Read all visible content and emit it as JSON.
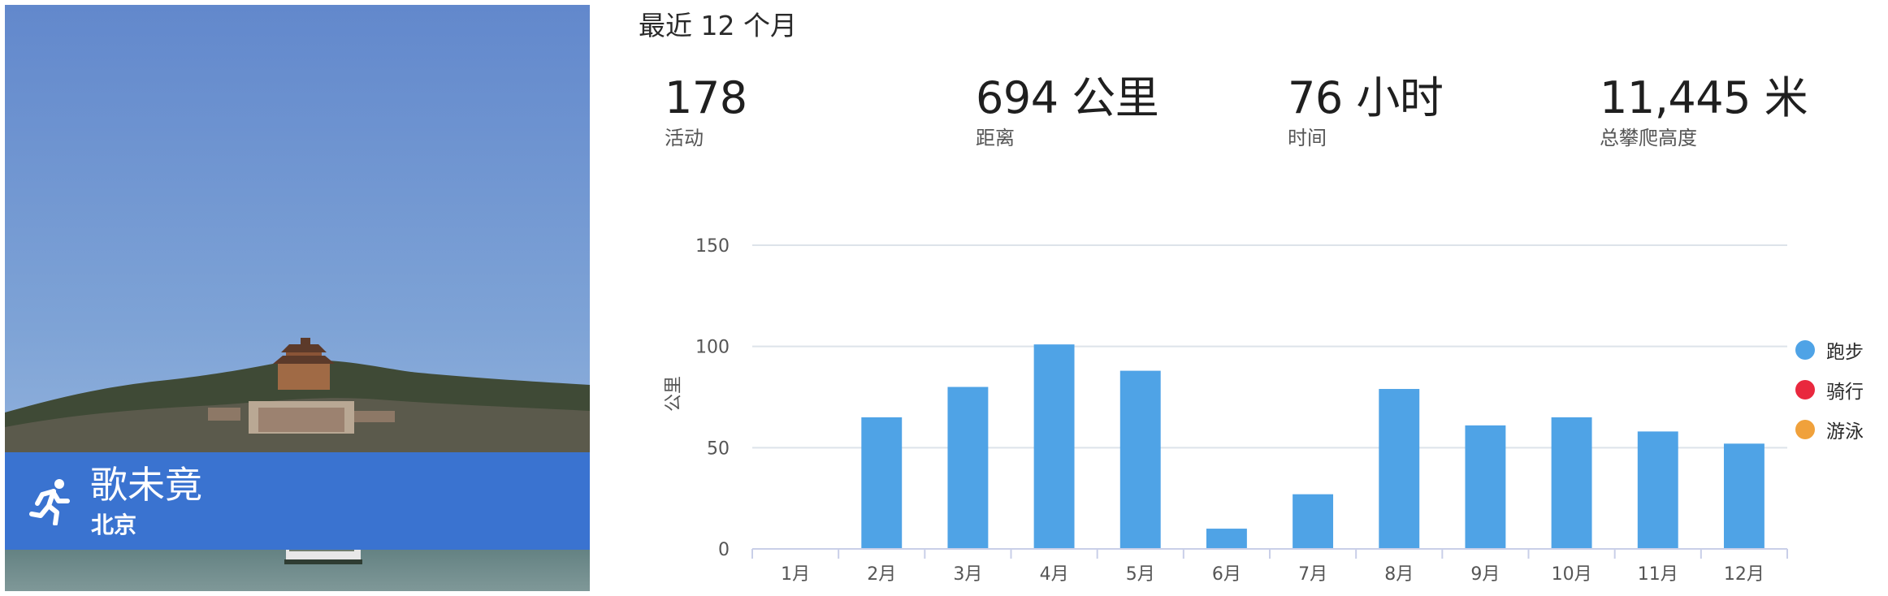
{
  "profile": {
    "name": "歌未竟",
    "city": "北京"
  },
  "period_title": "最近 12 个月",
  "stats": [
    {
      "value": "178",
      "label": "活动"
    },
    {
      "value": "694 公里",
      "label": "距离"
    },
    {
      "value": "76 小时",
      "label": "时间"
    },
    {
      "value": "11,445 米",
      "label": "总攀爬高度"
    }
  ],
  "legend": [
    {
      "label": "跑步",
      "color": "#4fa3e6"
    },
    {
      "label": "骑行",
      "color": "#e9283e"
    },
    {
      "label": "游泳",
      "color": "#f0a13b"
    }
  ],
  "colors": {
    "banner": "#3a73d0",
    "bar": "#4fa3e6",
    "grid": "#dde3ea",
    "axis": "#c9cfe8"
  },
  "icons": {
    "activity": "running-person-icon"
  },
  "chart_data": {
    "type": "bar",
    "categories": [
      "1月",
      "2月",
      "3月",
      "4月",
      "5月",
      "6月",
      "7月",
      "8月",
      "9月",
      "10月",
      "11月",
      "12月"
    ],
    "series": [
      {
        "name": "跑步",
        "values": [
          0,
          65,
          80,
          101,
          88,
          10,
          27,
          79,
          61,
          65,
          58,
          52
        ]
      }
    ],
    "ylabel": "公里",
    "yticks": [
      "0",
      "50",
      "100",
      "150"
    ],
    "ylim": [
      0,
      150
    ],
    "grid": true,
    "legend_position": "right"
  }
}
